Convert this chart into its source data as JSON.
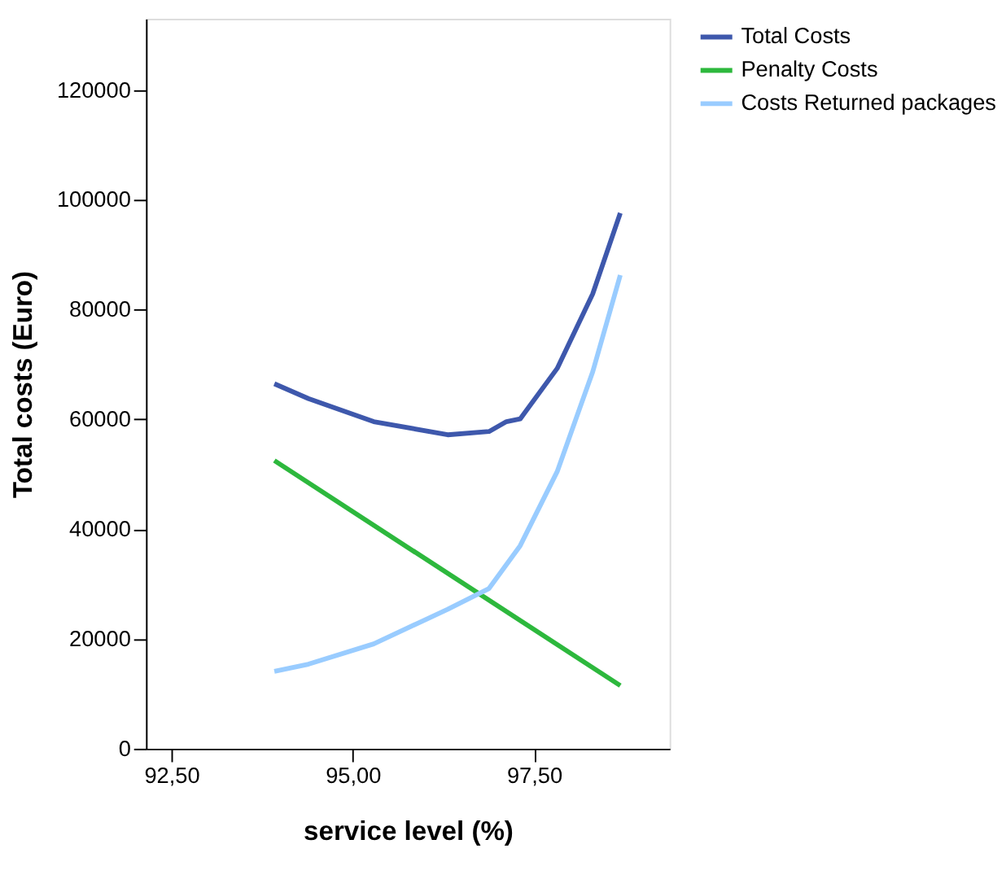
{
  "chart_data": {
    "type": "line",
    "xlabel": "service level (%)",
    "ylabel": "Total costs (Euro)",
    "xlim": [
      92.15,
      99.37
    ],
    "xticks": [
      {
        "value": 92.5,
        "label": "92,50"
      },
      {
        "value": 95,
        "label": "95,00"
      },
      {
        "value": 97.5,
        "label": "97,50"
      }
    ],
    "ylim": [
      0,
      133000
    ],
    "yticks": [
      0,
      20000,
      40000,
      60000,
      80000,
      100000,
      120000
    ],
    "grid": false,
    "legend": "top right",
    "line_style": "solid",
    "marker": "none",
    "series": [
      {
        "name": "Total Costs",
        "color": "#3e58ac",
        "x": [
          93.92,
          94.39,
          95.29,
          96.31,
          96.88,
          97.12,
          97.31,
          97.82,
          98.31,
          98.69
        ],
        "values": [
          66500,
          63800,
          59600,
          57200,
          57800,
          59600,
          60100,
          69300,
          82900,
          97600
        ]
      },
      {
        "name": "Penalty Costs",
        "color": "#2db83d",
        "x": [
          93.92,
          98.69
        ],
        "values": [
          52500,
          11500
        ]
      },
      {
        "name": "Costs Returned packages",
        "color": "#99ccff",
        "x": [
          93.92,
          94.39,
          95.29,
          96.31,
          96.88,
          97.31,
          97.82,
          98.31,
          98.69
        ],
        "values": [
          14100,
          15400,
          19100,
          25400,
          29200,
          37000,
          50500,
          68700,
          86300
        ]
      }
    ]
  }
}
